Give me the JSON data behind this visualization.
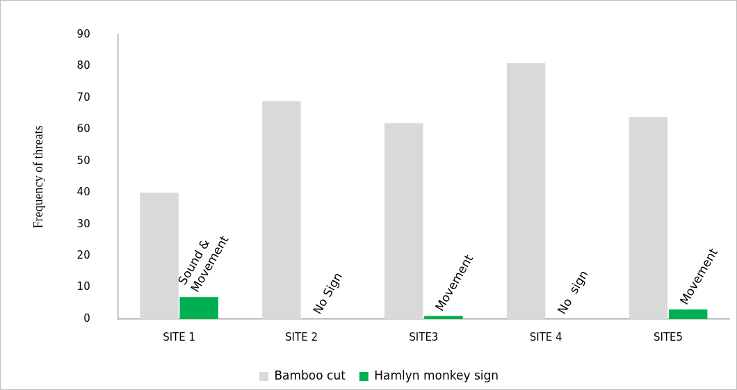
{
  "chart_data": {
    "type": "bar",
    "ylabel": "Frequency of threats",
    "categories": [
      "SITE 1",
      "SITE 2",
      "SITE3",
      "SITE 4",
      "SITE5"
    ],
    "series": [
      {
        "name": "Bamboo cut",
        "color": "#d9d9d9",
        "values": [
          40,
          69,
          62,
          81,
          64
        ]
      },
      {
        "name": "Hamlyn monkey sign",
        "color": "#00b050",
        "values": [
          7,
          0,
          1,
          0,
          3
        ]
      }
    ],
    "ylim": [
      0,
      90
    ],
    "yticks": [
      0,
      10,
      20,
      30,
      40,
      50,
      60,
      70,
      80,
      90
    ],
    "grid": false,
    "legend": "bottom",
    "annotations": [
      {
        "text": "Sound & Movement",
        "x": "SITE 1",
        "y": 7
      },
      {
        "text": "No Sign",
        "x": "SITE 2",
        "y": 0
      },
      {
        "text": "Movement",
        "x": "SITE3",
        "y": 1
      },
      {
        "text": "No  sign",
        "x": "SITE 4",
        "y": 0
      },
      {
        "text": "Movement",
        "x": "SITE5",
        "y": 3
      }
    ]
  }
}
